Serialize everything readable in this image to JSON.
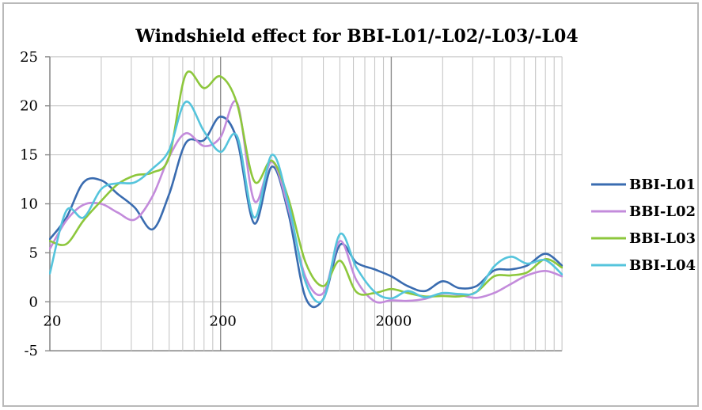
{
  "chart_data": {
    "type": "line",
    "title": "Windshield effect for BBI-L01/-L02/-L03/-L04",
    "xlabel": "",
    "ylabel": "",
    "x_axis": {
      "scale": "log",
      "min": 20,
      "max": 20000,
      "tick_labels": [
        {
          "value": 20,
          "label": "20"
        },
        {
          "value": 200,
          "label": "200"
        },
        {
          "value": 2000,
          "label": "2000"
        }
      ],
      "minor_gridline_multiples": [
        2,
        3,
        4,
        5,
        6,
        7,
        8,
        9
      ]
    },
    "y_axis": {
      "min": -5,
      "max": 25,
      "step": 5,
      "tick_labels": [
        "25",
        "20",
        "15",
        "10",
        "5",
        "0",
        "-5"
      ]
    },
    "grid": true,
    "legend_position": "right",
    "x": [
      20,
      25,
      31.5,
      40,
      50,
      63,
      80,
      100,
      125,
      160,
      200,
      250,
      315,
      400,
      500,
      630,
      800,
      1000,
      1250,
      1600,
      2000,
      2500,
      3150,
      4000,
      5000,
      6300,
      8000,
      10000,
      12500,
      16000,
      20000
    ],
    "series": [
      {
        "name": "BBI-L01",
        "color": "#3A6CB0",
        "values": [
          6.4,
          8.6,
          12.2,
          12.4,
          11.0,
          9.6,
          7.4,
          11.0,
          16.2,
          16.5,
          18.9,
          16.5,
          8.0,
          13.8,
          9.0,
          0.4,
          0.3,
          5.8,
          4.0,
          3.3,
          2.6,
          1.6,
          1.1,
          2.1,
          1.4,
          1.6,
          3.2,
          3.3,
          3.7,
          4.9,
          3.7
        ]
      },
      {
        "name": "BBI-L02",
        "color": "#C38BDB",
        "values": [
          5.4,
          8.3,
          9.9,
          10.0,
          9.1,
          8.4,
          10.8,
          14.8,
          17.2,
          15.9,
          16.8,
          20.3,
          10.3,
          14.3,
          9.5,
          2.5,
          0.9,
          6.2,
          2.2,
          0.05,
          0.15,
          0.1,
          0.3,
          0.85,
          0.7,
          0.4,
          0.9,
          1.8,
          2.7,
          3.15,
          2.6
        ]
      },
      {
        "name": "BBI-L03",
        "color": "#8DC73C",
        "values": [
          6.2,
          5.9,
          8.3,
          10.3,
          12.0,
          12.9,
          13.2,
          14.8,
          23.2,
          21.8,
          23.0,
          20.2,
          12.3,
          14.4,
          10.5,
          4.0,
          1.6,
          4.2,
          1.0,
          0.9,
          1.3,
          0.9,
          0.55,
          0.6,
          0.55,
          1.0,
          2.6,
          2.7,
          3.0,
          4.35,
          3.5
        ]
      },
      {
        "name": "BBI-L04",
        "color": "#55C4DC",
        "values": [
          2.9,
          9.3,
          8.6,
          11.5,
          12.1,
          12.2,
          13.6,
          15.5,
          20.4,
          17.4,
          15.3,
          16.9,
          8.6,
          15.0,
          10.0,
          2.0,
          0.25,
          6.9,
          3.5,
          1.0,
          0.35,
          1.1,
          0.45,
          0.9,
          0.8,
          1.0,
          3.6,
          4.6,
          3.9,
          4.25,
          2.8
        ]
      }
    ]
  },
  "colors": {
    "grid_minor": "#c7c7c7",
    "grid_major": "#909090",
    "axis_spine": "#8a8a8a",
    "frame_border": "#b9b9b9",
    "text": "#000000"
  }
}
